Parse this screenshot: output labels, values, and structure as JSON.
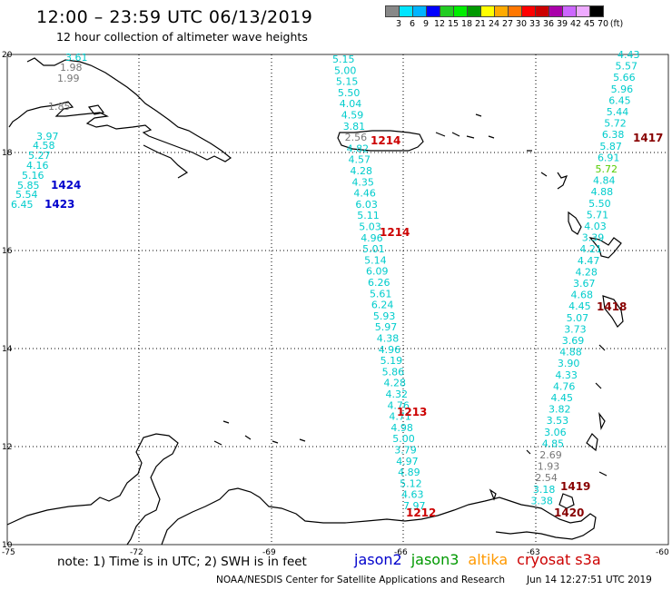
{
  "header": {
    "title": "12:00 – 23:59 UTC 06/13/2019",
    "subtitle": "12 hour collection of altimeter wave heights"
  },
  "colorbar": {
    "colors": [
      "#888888",
      "#00e5ff",
      "#00b4ff",
      "#0000ff",
      "#22cc22",
      "#00ee00",
      "#009900",
      "#ffff00",
      "#ffaa00",
      "#ff7700",
      "#ff0000",
      "#cc0000",
      "#aa00aa",
      "#cc66ff",
      "#eeaaff",
      "#000000"
    ],
    "labels": [
      "3",
      "6",
      "9",
      "12",
      "15",
      "18",
      "21",
      "24",
      "27",
      "30",
      "33",
      "36",
      "39",
      "42",
      "45",
      "70",
      "(ft)"
    ]
  },
  "axes": {
    "x_ticks": [
      "-75",
      "-72",
      "-69",
      "-66",
      "-63",
      "-60"
    ],
    "y_ticks": [
      "20",
      "18",
      "16",
      "14",
      "12",
      "10"
    ]
  },
  "tracks": {
    "hispaniola_values": [
      "3.61",
      "1.98",
      "1.99",
      "1.85",
      "3.97",
      "4.58",
      "5.27",
      "4.16",
      "5.16",
      "5.85",
      "5.54",
      "6.45"
    ],
    "hispaniola_times": [
      "1424",
      "1423"
    ],
    "jason_main_values": [
      "5.15",
      "5.00",
      "5.15",
      "5.50",
      "4.04",
      "4.59",
      "3.81",
      "2.56",
      "4.82",
      "4.57",
      "4.28",
      "4.35",
      "4.46",
      "6.03",
      "5.11",
      "5.03",
      "4.96",
      "5.01",
      "5.14",
      "6.09",
      "6.26",
      "5.61",
      "6.24",
      "5.93",
      "5.97",
      "4.38",
      "4.96",
      "5.19",
      "5.86",
      "4.28",
      "4.32",
      "4.76",
      "4.71",
      "4.98",
      "5.00",
      "3.79",
      "4.97",
      "4.89",
      "5.12",
      "4.63",
      "7.97"
    ],
    "jason_main_times": [
      "1214",
      "1214",
      "1213",
      "1212"
    ],
    "east_values": [
      "4.43",
      "5.57",
      "5.66",
      "5.96",
      "6.45",
      "5.44",
      "5.72",
      "6.38",
      "5.87",
      "6.91",
      "5.72",
      "4.84",
      "4.88",
      "5.50",
      "5.71",
      "4.03",
      "3.39",
      "4.21",
      "4.47",
      "4.28",
      "3.67",
      "4.68",
      "4.45",
      "5.07",
      "3.73",
      "3.69",
      "4.88",
      "3.90",
      "4.33",
      "4.76",
      "4.45",
      "3.82",
      "3.53",
      "3.06",
      "4.85",
      "2.69",
      "1.93",
      "2.54",
      "3.18",
      "3.38"
    ],
    "east_times": [
      "1417",
      "1418",
      "1419",
      "1420"
    ]
  },
  "footer": {
    "note": "note: 1) Time is in UTC; 2) SWH is in feet",
    "legend": [
      {
        "label": "jason2",
        "color": "#0000cc"
      },
      {
        "label": "jason3",
        "color": "#009900"
      },
      {
        "label": "altika",
        "color": "#ff9900"
      },
      {
        "label": "cryosat s3a",
        "color": "#cc0000"
      }
    ],
    "credit": "NOAA/NESDIS Center for Satellite Applications and Research",
    "generated": "Jun 14 12:27:51 UTC 2019"
  }
}
